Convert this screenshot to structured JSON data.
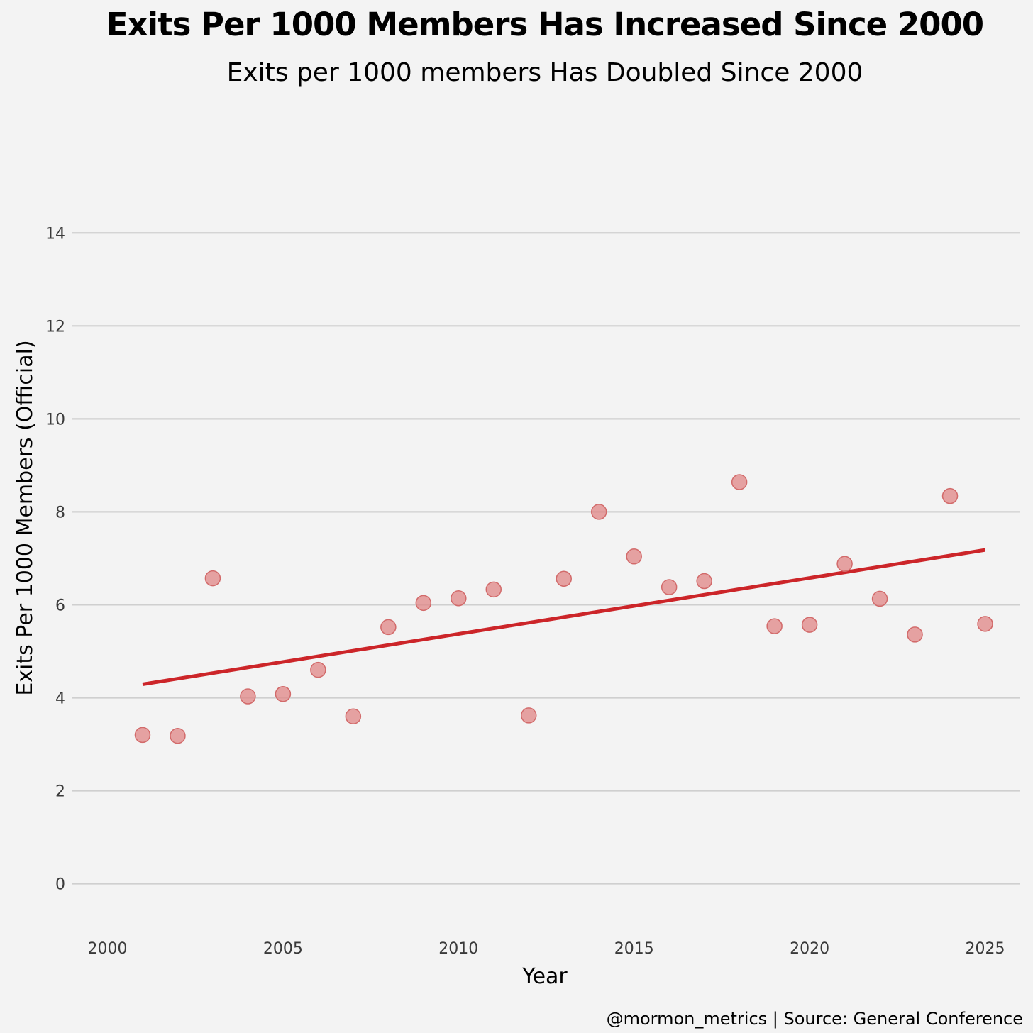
{
  "chart_data": {
    "type": "scatter",
    "title": "Exits Per 1000 Members Has Increased Since 2000",
    "subtitle": "Exits per 1000 members Has Doubled Since 2000",
    "xlabel": "Year",
    "ylabel": "Exits Per 1000 Members (Official)",
    "caption": "@mormon_metrics | Source: General Conference",
    "xlim": [
      1999,
      2026
    ],
    "ylim": [
      -0.8,
      15.5
    ],
    "x_ticks": [
      2000,
      2005,
      2010,
      2015,
      2020,
      2025
    ],
    "y_ticks": [
      0,
      2,
      4,
      6,
      8,
      10,
      12,
      14
    ],
    "grid": "horizontal",
    "legend": "none",
    "point_color": "#e08585",
    "trend_color": "#cc2529",
    "series": [
      {
        "x": [
          2001,
          2002,
          2003,
          2004,
          2005,
          2006,
          2007,
          2008,
          2009,
          2010,
          2011,
          2012,
          2013,
          2014,
          2015,
          2016,
          2017,
          2018,
          2019,
          2020,
          2021,
          2022,
          2023,
          2024,
          2025
        ],
        "y": [
          3.2,
          3.18,
          6.57,
          4.03,
          4.08,
          4.6,
          3.6,
          5.52,
          6.04,
          6.14,
          6.33,
          3.62,
          6.56,
          8.0,
          7.04,
          6.38,
          6.51,
          8.64,
          5.54,
          5.57,
          6.88,
          6.13,
          5.36,
          8.34,
          5.59
        ]
      }
    ],
    "trendline": {
      "x": [
        2001,
        2025
      ],
      "y": [
        4.29,
        7.18
      ]
    }
  }
}
